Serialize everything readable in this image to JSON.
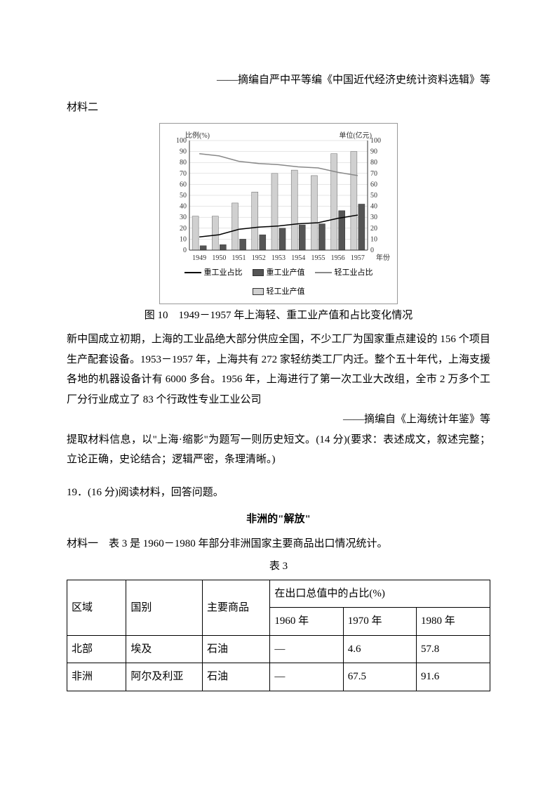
{
  "citation1": "——摘编自严中平等编《中国近代经济史统计资料选辑》等",
  "material2_label": "材料二",
  "chart": {
    "type": "bar+line",
    "left_axis_label": "比例(%)",
    "right_axis_label": "单位(亿元)",
    "ylim": [
      0,
      100
    ],
    "ytick_step": 10,
    "years": [
      "1949",
      "1950",
      "1951",
      "1952",
      "1953",
      "1954",
      "1955",
      "1956",
      "1957"
    ],
    "x_label_suffix": "年份",
    "series": {
      "light_value": [
        31,
        31,
        43,
        53,
        70,
        73,
        68,
        88,
        90
      ],
      "heavy_value": [
        4,
        5,
        10,
        14,
        20,
        23,
        24,
        36,
        42
      ],
      "heavy_ratio": [
        12,
        14,
        19,
        21,
        22,
        24,
        25,
        29,
        32
      ],
      "light_ratio": [
        88,
        86,
        81,
        79,
        78,
        76,
        75,
        71,
        68
      ]
    },
    "colors": {
      "light_bar": "#d0d0d0",
      "heavy_bar": "#555555",
      "heavy_line": "#000000",
      "light_line": "#888888",
      "grid": "#cccccc",
      "axis": "#333333"
    },
    "legend": {
      "heavy_ratio": "重工业占比",
      "heavy_value": "重工业产值",
      "light_ratio": "轻工业占比",
      "light_value": "轻工业产值"
    },
    "font_size_axis": 10
  },
  "chart_caption": "图 10　1949－1957 年上海轻、重工业产值和占比变化情况",
  "body1": "新中国成立初期，上海的工业品绝大部分供应全国，不少工厂为国家重点建设的 156 个项目生产配套设备。1953－1957 年，上海共有 272 家轻纺类工厂内迁。整个五十年代，上海支援各地的机器设备计有 6000 多台。1956 年，上海进行了第一次工业大改组，全市 2 万多个工厂分行业成立了 83 个行政性专业工业公司",
  "citation2": "——摘编自《上海统计年鉴》等",
  "task": "提取材料信息，以\"上海·缩影\"为题写一则历史短文。(14 分)(要求：表述成文，叙述完整；立论正确，史论结合；逻辑严密，条理清晰。)",
  "q19": "19．(16 分)阅读材料，回答问题。",
  "africa_title": "非洲的\"解放\"",
  "material1_intro": "材料一　表 3 是 1960－1980 年部分非洲国家主要商品出口情况统计。",
  "table_caption": "表 3",
  "table": {
    "headers": {
      "region": "区域",
      "country": "国别",
      "commodity": "主要商品",
      "share": "在出口总值中的占比(%)",
      "y1960": "1960 年",
      "y1970": "1970 年",
      "y1980": "1980 年"
    },
    "rows": [
      {
        "region": "北部",
        "country": "埃及",
        "commodity": "石油",
        "v1960": "—",
        "v1970": "4.6",
        "v1980": "57.8"
      },
      {
        "region": "非洲",
        "country": "阿尔及利亚",
        "commodity": "石油",
        "v1960": "—",
        "v1970": "67.5",
        "v1980": "91.6"
      }
    ],
    "col_widths": [
      "14%",
      "18%",
      "16%",
      "17.3%",
      "17.3%",
      "17.4%"
    ]
  }
}
